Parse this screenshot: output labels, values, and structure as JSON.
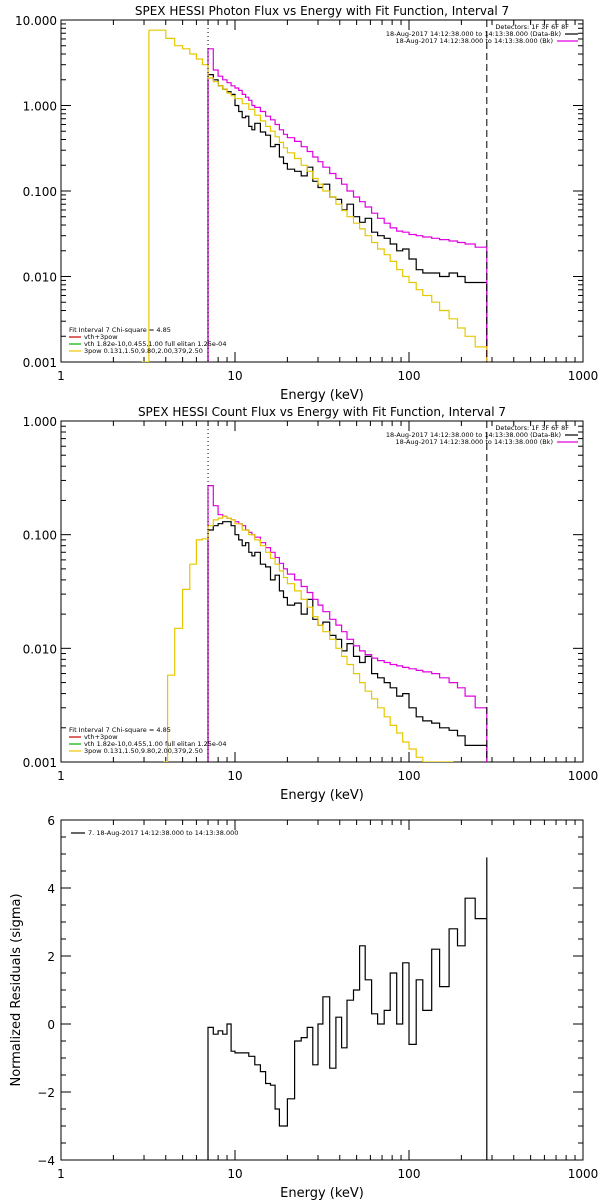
{
  "chart_data": [
    {
      "type": "line",
      "title": "SPEX HESSI Photon Flux vs Energy with Fit Function, Interval 7",
      "xlabel": "Energy (keV)",
      "ylabel": "",
      "xscale": "log",
      "yscale": "log",
      "xlim": [
        1,
        1000
      ],
      "ylim": [
        0.001,
        10
      ],
      "xticks": [
        "1",
        "10",
        "100",
        "1000"
      ],
      "yticks": [
        "0.001",
        "0.010",
        "0.100",
        "1.000",
        "10.000"
      ],
      "vlines": [
        {
          "x": 7,
          "style": "dotted"
        },
        {
          "x": 280,
          "style": "dashed"
        }
      ],
      "legend_top": {
        "header": "Detectors: 1F 3F 6F 8F",
        "entries": [
          {
            "label": "18-Aug-2017 14:12:38.000 to 14:13:38.000 (Data-Bk)",
            "color": "#000000"
          },
          {
            "label": "18-Aug-2017 14:12:38.000 to 14:13:38.000 (Bk)",
            "color": "#e000e0"
          }
        ]
      },
      "legend_bottom": {
        "header": "Fit Interval 7   Chi-square = 4.85",
        "entries": [
          {
            "label": "vth+3pow",
            "color": "#cc0000"
          },
          {
            "label": "vth 1.82e-10,0.455,1.00  full elitan 1.25e-04",
            "color": "#00b000"
          },
          {
            "label": "3pow 0.131,1.50,9.80,2.00,379,2.50",
            "color": "#e6c800"
          }
        ]
      },
      "series": [
        {
          "role": "data-bk",
          "color": "#000000",
          "x": [
            7,
            7.5,
            8,
            8.5,
            9,
            9.5,
            10,
            10.5,
            11,
            11.5,
            12,
            12.5,
            13,
            14,
            15,
            16,
            17,
            18,
            19,
            20,
            22,
            24,
            26,
            28,
            30,
            32,
            35,
            38,
            41,
            44,
            48,
            52,
            56,
            61,
            66,
            72,
            78,
            85,
            92,
            100,
            110,
            120,
            135,
            150,
            170,
            190,
            210,
            240,
            280
          ],
          "y": [
            2.3,
            2.0,
            1.7,
            1.55,
            1.45,
            1.35,
            1.0,
            0.85,
            0.72,
            0.75,
            0.57,
            0.52,
            0.62,
            0.49,
            0.45,
            0.33,
            0.35,
            0.25,
            0.21,
            0.18,
            0.17,
            0.15,
            0.19,
            0.13,
            0.11,
            0.12,
            0.085,
            0.08,
            0.06,
            0.07,
            0.05,
            0.043,
            0.048,
            0.033,
            0.03,
            0.028,
            0.024,
            0.02,
            0.021,
            0.016,
            0.012,
            0.011,
            0.011,
            0.01,
            0.011,
            0.01,
            0.0085,
            0.0085,
            0.0085
          ]
        },
        {
          "role": "bk",
          "color": "#e000e0",
          "x": [
            7,
            7.5,
            8,
            8.5,
            9,
            9.5,
            10,
            10.5,
            11,
            11.5,
            12,
            12.5,
            13,
            14,
            15,
            16,
            17,
            18,
            19,
            20,
            22,
            24,
            26,
            28,
            30,
            32,
            35,
            38,
            41,
            44,
            48,
            52,
            56,
            61,
            66,
            72,
            78,
            85,
            92,
            100,
            110,
            120,
            135,
            150,
            170,
            190,
            210,
            240,
            280
          ],
          "y": [
            4.6,
            2.6,
            2.2,
            2.0,
            1.85,
            1.7,
            1.6,
            1.5,
            1.35,
            1.25,
            1.15,
            1.0,
            0.95,
            0.85,
            0.75,
            0.68,
            0.6,
            0.52,
            0.46,
            0.42,
            0.38,
            0.33,
            0.29,
            0.25,
            0.22,
            0.19,
            0.16,
            0.14,
            0.12,
            0.1,
            0.085,
            0.075,
            0.065,
            0.055,
            0.048,
            0.042,
            0.037,
            0.034,
            0.033,
            0.031,
            0.03,
            0.029,
            0.028,
            0.027,
            0.026,
            0.025,
            0.024,
            0.022,
            0.02
          ]
        },
        {
          "role": "fit-3pow",
          "color": "#e6c800",
          "x": [
            2.9,
            3.2,
            3.5,
            4,
            4.5,
            5,
            5.5,
            6,
            6.5,
            7,
            7.5,
            8,
            8.5,
            9,
            9.5,
            10,
            11,
            12,
            13,
            14,
            15,
            16,
            17,
            18,
            19,
            20,
            22,
            24,
            26,
            28,
            30,
            32,
            35,
            38,
            41,
            44,
            48,
            52,
            56,
            61,
            66,
            72,
            78,
            85,
            92,
            100,
            110,
            120,
            135,
            150,
            170,
            190,
            210,
            240,
            280
          ],
          "y": [
            0.001,
            7.6,
            7.6,
            6.1,
            5.0,
            4.6,
            4.0,
            3.5,
            3.0,
            2.1,
            1.9,
            1.7,
            1.55,
            1.4,
            1.3,
            1.2,
            1.05,
            0.9,
            0.77,
            0.66,
            0.57,
            0.5,
            0.43,
            0.37,
            0.32,
            0.28,
            0.24,
            0.2,
            0.17,
            0.14,
            0.12,
            0.1,
            0.085,
            0.07,
            0.059,
            0.05,
            0.042,
            0.036,
            0.03,
            0.025,
            0.021,
            0.018,
            0.015,
            0.012,
            0.01,
            0.0085,
            0.007,
            0.006,
            0.005,
            0.004,
            0.0032,
            0.0025,
            0.002,
            0.0015,
            0.001
          ]
        }
      ]
    },
    {
      "type": "line",
      "title": "SPEX HESSI Count Flux vs Energy with Fit Function, Interval 7",
      "xlabel": "Energy (keV)",
      "ylabel": "",
      "xscale": "log",
      "yscale": "log",
      "xlim": [
        1,
        1000
      ],
      "ylim": [
        0.001,
        1
      ],
      "xticks": [
        "1",
        "10",
        "100",
        "1000"
      ],
      "yticks": [
        "0.001",
        "0.010",
        "0.100",
        "1.000"
      ],
      "vlines": [
        {
          "x": 7,
          "style": "dotted"
        },
        {
          "x": 280,
          "style": "dashed"
        }
      ],
      "legend_top": {
        "header": "Detectors: 1F 3F 6F 8F",
        "entries": [
          {
            "label": "18-Aug-2017 14:12:38.000 to 14:13:38.000 (Data-Bk)",
            "color": "#000000"
          },
          {
            "label": "18-Aug-2017 14:12:38.000 to 14:13:38.000 (Bk)",
            "color": "#e000e0"
          }
        ]
      },
      "legend_bottom": {
        "header": "Fit Interval 7   Chi-square = 4.85",
        "entries": [
          {
            "label": "vth+3pow",
            "color": "#cc0000"
          },
          {
            "label": "vth 1.82e-10,0.455,1.00  full elitan 1.25e-04",
            "color": "#00b000"
          },
          {
            "label": "3pow 0.131,1.50,9.80,2.00,379,2.50",
            "color": "#e6c800"
          }
        ]
      },
      "series": [
        {
          "role": "data-bk",
          "color": "#000000",
          "x": [
            7,
            7.5,
            8,
            8.5,
            9,
            9.5,
            10,
            10.5,
            11,
            11.5,
            12,
            12.5,
            13,
            14,
            15,
            16,
            17,
            18,
            19,
            20,
            22,
            24,
            26,
            28,
            30,
            32,
            35,
            38,
            41,
            44,
            48,
            52,
            56,
            61,
            66,
            72,
            78,
            85,
            92,
            100,
            110,
            120,
            135,
            150,
            170,
            190,
            210,
            240,
            280
          ],
          "y": [
            0.11,
            0.12,
            0.125,
            0.13,
            0.13,
            0.12,
            0.1,
            0.09,
            0.08,
            0.085,
            0.07,
            0.065,
            0.07,
            0.055,
            0.052,
            0.04,
            0.044,
            0.032,
            0.028,
            0.024,
            0.025,
            0.02,
            0.027,
            0.018,
            0.016,
            0.017,
            0.013,
            0.012,
            0.0095,
            0.011,
            0.0085,
            0.0075,
            0.0085,
            0.006,
            0.0055,
            0.005,
            0.0045,
            0.0038,
            0.004,
            0.003,
            0.0025,
            0.0023,
            0.0022,
            0.002,
            0.0019,
            0.0017,
            0.0014,
            0.0014,
            0.0014
          ]
        },
        {
          "role": "bk",
          "color": "#e000e0",
          "x": [
            7,
            7.5,
            8,
            8.5,
            9,
            9.5,
            10,
            10.5,
            11,
            11.5,
            12,
            12.5,
            13,
            14,
            15,
            16,
            17,
            18,
            19,
            20,
            22,
            24,
            26,
            28,
            30,
            32,
            35,
            38,
            41,
            44,
            48,
            52,
            56,
            61,
            66,
            72,
            78,
            85,
            92,
            100,
            110,
            120,
            135,
            150,
            170,
            190,
            210,
            240,
            280
          ],
          "y": [
            0.27,
            0.18,
            0.15,
            0.145,
            0.14,
            0.135,
            0.13,
            0.125,
            0.12,
            0.11,
            0.105,
            0.1,
            0.095,
            0.085,
            0.077,
            0.07,
            0.063,
            0.056,
            0.05,
            0.045,
            0.04,
            0.035,
            0.031,
            0.027,
            0.024,
            0.021,
            0.018,
            0.016,
            0.014,
            0.012,
            0.0105,
            0.0095,
            0.0088,
            0.0082,
            0.0078,
            0.0075,
            0.0072,
            0.007,
            0.0068,
            0.0066,
            0.0064,
            0.0062,
            0.006,
            0.0055,
            0.005,
            0.0045,
            0.0038,
            0.003,
            0.0025
          ]
        },
        {
          "role": "fit-3pow",
          "color": "#e6c800",
          "x": [
            3.9,
            4.1,
            4.5,
            5,
            5.5,
            6,
            6.5,
            7,
            7.5,
            8,
            8.5,
            9,
            9.5,
            10,
            11,
            12,
            13,
            14,
            15,
            16,
            17,
            18,
            19,
            20,
            22,
            24,
            26,
            28,
            30,
            32,
            35,
            38,
            41,
            44,
            48,
            52,
            56,
            61,
            66,
            72,
            78,
            85,
            92,
            100,
            110,
            120,
            135,
            150,
            170,
            180
          ],
          "y": [
            0.001,
            0.0058,
            0.015,
            0.033,
            0.055,
            0.09,
            0.092,
            0.12,
            0.135,
            0.14,
            0.145,
            0.14,
            0.135,
            0.125,
            0.11,
            0.1,
            0.09,
            0.08,
            0.07,
            0.062,
            0.055,
            0.048,
            0.042,
            0.037,
            0.032,
            0.027,
            0.023,
            0.019,
            0.016,
            0.014,
            0.012,
            0.01,
            0.0085,
            0.0072,
            0.006,
            0.005,
            0.0042,
            0.0036,
            0.003,
            0.0025,
            0.0021,
            0.0018,
            0.0015,
            0.0013,
            0.0011,
            0.001,
            0.001,
            0.001,
            0.001,
            0.001
          ]
        }
      ]
    },
    {
      "type": "line",
      "title": "",
      "xlabel": "Energy (keV)",
      "ylabel": "Normalized Residuals (sigma)",
      "xscale": "log",
      "yscale": "linear",
      "xlim": [
        1,
        1000
      ],
      "ylim": [
        -4,
        6
      ],
      "xticks": [
        "1",
        "10",
        "100",
        "1000"
      ],
      "yticks": [
        "-4",
        "-2",
        "0",
        "2",
        "4",
        "6"
      ],
      "legend_top": {
        "entries": [
          {
            "label": "7. 18-Aug-2017 14:12:38.000 to 14:13:38.000",
            "color": "#000000"
          }
        ]
      },
      "series": [
        {
          "role": "residuals",
          "color": "#000000",
          "x": [
            7,
            7.5,
            8,
            8.5,
            9,
            9.5,
            10,
            11,
            12,
            13,
            14,
            15,
            16,
            17,
            18,
            19,
            20,
            22,
            24,
            26,
            28,
            30,
            32,
            35,
            38,
            41,
            44,
            48,
            52,
            56,
            61,
            66,
            72,
            78,
            85,
            92,
            100,
            110,
            120,
            135,
            150,
            170,
            190,
            210,
            240,
            280
          ],
          "y": [
            -0.1,
            -0.3,
            -0.2,
            -0.3,
            0.0,
            -0.8,
            -0.85,
            -0.85,
            -0.95,
            -1.2,
            -1.4,
            -1.75,
            -1.8,
            -2.5,
            -3.0,
            -3.0,
            -2.2,
            -0.5,
            -0.4,
            -0.1,
            -1.2,
            0.0,
            0.8,
            -1.3,
            0.2,
            -0.7,
            0.7,
            1.0,
            2.3,
            1.3,
            0.3,
            0.0,
            0.4,
            1.5,
            0.0,
            1.8,
            -0.6,
            1.3,
            0.4,
            2.2,
            1.1,
            2.8,
            2.3,
            3.7,
            3.1,
            4.9
          ]
        }
      ]
    }
  ]
}
